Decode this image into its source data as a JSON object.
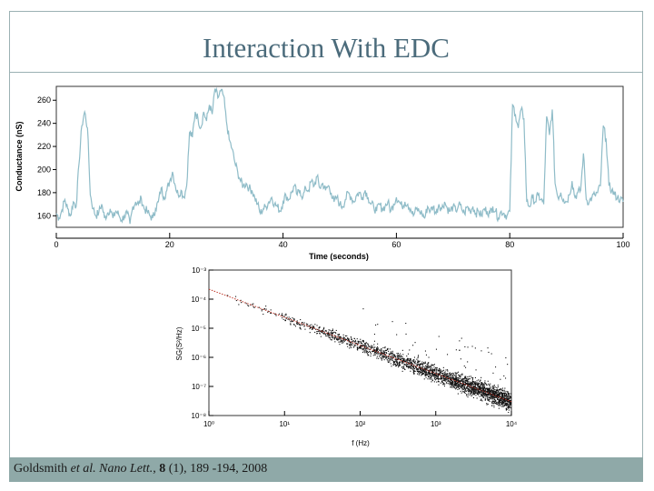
{
  "slide": {
    "title": "Interaction With EDC",
    "citation": {
      "authors": "Goldsmith",
      "etal": " et al. ",
      "journal": "Nano Lett.",
      "sep": ", ",
      "volume": "8",
      "rest": " (1), 189 -194, 2008"
    }
  },
  "chart_data": [
    {
      "type": "line",
      "xlabel": "Time (seconds)",
      "ylabel": "Conductance (nS)",
      "xlim": [
        0,
        100
      ],
      "ylim": [
        150,
        272
      ],
      "xticks": [
        0,
        20,
        40,
        60,
        80,
        100
      ],
      "yticks": [
        160,
        180,
        200,
        220,
        240,
        260
      ],
      "color": "#8fbcc8",
      "series": [
        {
          "x": [
            0,
            0.5,
            1,
            1.5,
            2,
            2.5,
            3,
            3.5,
            4,
            4.5,
            5,
            5.5,
            6,
            6.5,
            7,
            7.5,
            8,
            8.5,
            9,
            9.5,
            10,
            10.5,
            11,
            11.5,
            12,
            12.5,
            13,
            13.5,
            14,
            14.5,
            15,
            15.5,
            16,
            16.5,
            17,
            17.5,
            18,
            18.5,
            19,
            19.5,
            20,
            20.5,
            21,
            21.5,
            22,
            22.5,
            23,
            23.5,
            24,
            24.5,
            25,
            25.5,
            26,
            26.5,
            27,
            27.5,
            28,
            28.5,
            29,
            29.5,
            30,
            30.5,
            31,
            31.5,
            32,
            32.5,
            33,
            33.5,
            34,
            34.5,
            35,
            35.5,
            36,
            36.5,
            37,
            37.5,
            38,
            38.5,
            39,
            39.5,
            40,
            40.5,
            41,
            41.5,
            42,
            42.5,
            43,
            43.5,
            44,
            44.5,
            45,
            45.5,
            46,
            46.5,
            47,
            47.5,
            48,
            48.5,
            49,
            49.5,
            50,
            50.5,
            51,
            51.5,
            52,
            52.5,
            53,
            53.5,
            54,
            54.5,
            55,
            55.5,
            56,
            56.5,
            57,
            57.5,
            58,
            58.5,
            59,
            59.5,
            60,
            60.5,
            61,
            61.5,
            62,
            62.5,
            63,
            63.5,
            64,
            64.5,
            65,
            65.5,
            66,
            66.5,
            67,
            67.5,
            68,
            68.5,
            69,
            69.5,
            70,
            70.5,
            71,
            71.5,
            72,
            72.5,
            73,
            73.5,
            74,
            74.5,
            75,
            75.5,
            76,
            76.5,
            77,
            77.5,
            78,
            78.5,
            79,
            79.5,
            80,
            80.5,
            81,
            81.5,
            82,
            82.5,
            83,
            83.5,
            84,
            84.5,
            85,
            85.5,
            86,
            86.5,
            87,
            87.5,
            88,
            88.5,
            89,
            89.5,
            90,
            90.5,
            91,
            91.5,
            92,
            92.5,
            93,
            93.5,
            94,
            94.5,
            95,
            95.5,
            96,
            96.5,
            97,
            97.5,
            98,
            98.5,
            99,
            99.5,
            100
          ],
          "values": [
            162,
            158,
            165,
            174,
            166,
            160,
            172,
            168,
            205,
            238,
            250,
            236,
            178,
            166,
            160,
            163,
            170,
            158,
            162,
            166,
            158,
            164,
            161,
            156,
            160,
            162,
            153,
            168,
            172,
            170,
            175,
            166,
            164,
            160,
            158,
            166,
            172,
            184,
            176,
            182,
            190,
            198,
            186,
            178,
            182,
            176,
            186,
            232,
            228,
            250,
            244,
            236,
            250,
            242,
            256,
            248,
            270,
            262,
            268,
            264,
            242,
            226,
            218,
            206,
            198,
            190,
            186,
            188,
            184,
            182,
            176,
            170,
            162,
            166,
            168,
            172,
            176,
            170,
            168,
            164,
            172,
            178,
            174,
            180,
            186,
            178,
            182,
            176,
            184,
            182,
            190,
            186,
            194,
            184,
            188,
            182,
            186,
            180,
            172,
            176,
            170,
            168,
            174,
            180,
            176,
            172,
            178,
            180,
            176,
            182,
            176,
            170,
            168,
            164,
            170,
            166,
            168,
            172,
            164,
            170,
            176,
            172,
            168,
            172,
            170,
            166,
            160,
            166,
            164,
            162,
            158,
            168,
            164,
            168,
            162,
            170,
            166,
            172,
            166,
            164,
            168,
            164,
            170,
            166,
            162,
            168,
            164,
            168,
            162,
            164,
            160,
            166,
            164,
            162,
            168,
            164,
            158,
            164,
            162,
            160,
            164,
            256,
            248,
            236,
            252,
            244,
            172,
            168,
            176,
            172,
            178,
            174,
            170,
            246,
            230,
            252,
            188,
            176,
            180,
            174,
            172,
            178,
            190,
            176,
            180,
            182,
            214,
            174,
            172,
            176,
            178,
            180,
            186,
            238,
            226,
            186,
            182,
            178,
            176,
            174,
            172
          ]
        }
      ]
    },
    {
      "type": "scatter",
      "xlabel": "f (Hz)",
      "ylabel": "SG(S²/Hz)",
      "x_scale": "log",
      "y_scale": "log",
      "xlim": [
        1,
        10000
      ],
      "ylim": [
        1e-08,
        0.001
      ],
      "xtick_labels": [
        "10⁰",
        "10¹",
        "10²",
        "10³",
        "10⁴"
      ],
      "ytick_labels": [
        "10⁻³",
        "10⁻⁴",
        "10⁻⁵",
        "10⁻⁶",
        "10⁻⁷",
        "10⁻⁸"
      ],
      "fit_line": {
        "x": [
          1,
          10000
        ],
        "y": [
          0.00022,
          3e-08
        ],
        "color": "#c0392b",
        "style": "dotted"
      },
      "point_color": "#111111",
      "point_density": {
        "x_start": 1,
        "x_end": 10000,
        "scatter_decades": 0.5,
        "point_count": 2600,
        "fit_slope": -0.97
      }
    }
  ]
}
